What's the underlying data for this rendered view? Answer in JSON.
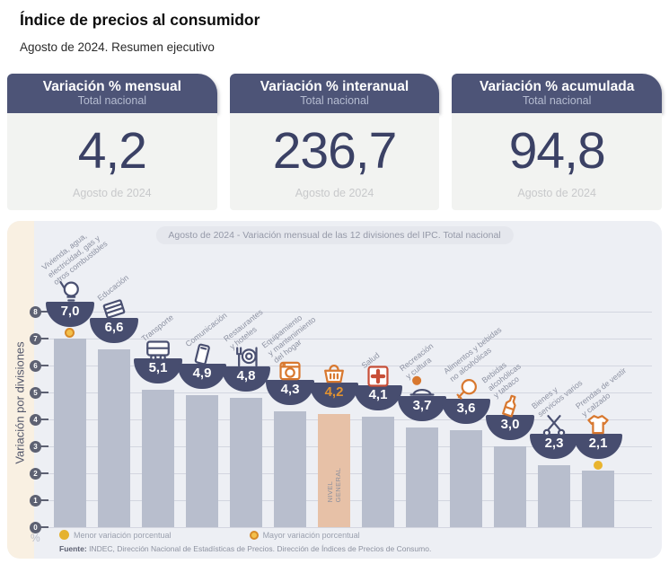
{
  "page": {
    "title": "Índice de precios al consumidor",
    "subtitle": "Agosto de 2024. Resumen ejecutivo"
  },
  "cards": [
    {
      "title": "Variación % mensual",
      "subtitle": "Total nacional",
      "value": "4,2",
      "period": "Agosto de 2024"
    },
    {
      "title": "Variación % interanual",
      "subtitle": "Total nacional",
      "value": "236,7",
      "period": "Agosto de 2024"
    },
    {
      "title": "Variación % acumulada",
      "subtitle": "Total nacional",
      "value": "94,8",
      "period": "Agosto de 2024"
    }
  ],
  "chart_data": {
    "type": "bar",
    "title": "Agosto de 2024 - Variación mensual de las 12 divisiones del IPC. Total nacional",
    "ylabel": "Variación por divisiones",
    "unit_symbol": "%",
    "ylim": [
      0,
      8
    ],
    "yticks": [
      0,
      1,
      2,
      3,
      4,
      5,
      6,
      7,
      8
    ],
    "categories": [
      "Vivienda, agua, electricidad, gas y otros combustibles",
      "Educación",
      "Transporte",
      "Comunicación",
      "Restaurantes y hoteles",
      "Equipamiento y mantenimiento del hogar",
      "Nivel general",
      "Salud",
      "Recreación y cultura",
      "Alimentos y bebidas no alcohólicas",
      "Bebidas alcohólicas y tabaco",
      "Bienes y servicios varios",
      "Prendas de vestir y calzado"
    ],
    "values": [
      7.0,
      6.6,
      5.1,
      4.9,
      4.8,
      4.3,
      4.2,
      4.1,
      3.7,
      3.6,
      3.0,
      2.3,
      2.1
    ],
    "bars": [
      {
        "label_lines": [
          "Vivienda, agua,",
          "electricidad, gas y",
          "otros combustibles"
        ],
        "value": 7.0,
        "value_label": "7,0",
        "icon": "lightbulb-icon",
        "icon_color": "navy",
        "marker": "mayor",
        "highlight": false
      },
      {
        "label_lines": [
          "Educación"
        ],
        "value": 6.6,
        "value_label": "6,6",
        "icon": "books-icon",
        "icon_color": "navy",
        "marker": null,
        "highlight": false
      },
      {
        "label_lines": [
          "Transporte"
        ],
        "value": 5.1,
        "value_label": "5,1",
        "icon": "bus-icon",
        "icon_color": "navy",
        "marker": null,
        "highlight": false
      },
      {
        "label_lines": [
          "Comunicación"
        ],
        "value": 4.9,
        "value_label": "4,9",
        "icon": "smartphone-icon",
        "icon_color": "navy",
        "marker": null,
        "highlight": false
      },
      {
        "label_lines": [
          "Restaurantes",
          "y hoteles"
        ],
        "value": 4.8,
        "value_label": "4,8",
        "icon": "cutlery-icon",
        "icon_color": "navy",
        "marker": null,
        "highlight": false
      },
      {
        "label_lines": [
          "Equipamiento",
          "y mantenimiento",
          "del hogar"
        ],
        "value": 4.3,
        "value_label": "4,3",
        "icon": "appliance-icon",
        "icon_color": "orange",
        "marker": null,
        "highlight": false
      },
      {
        "label_lines": [],
        "in_bar_label": "NIVEL\nGENERAL",
        "value": 4.2,
        "value_label": "4,2",
        "icon": "shopping-basket-icon",
        "icon_color": "orange",
        "marker": null,
        "highlight": true
      },
      {
        "label_lines": [
          "Salud"
        ],
        "value": 4.1,
        "value_label": "4,1",
        "icon": "medical-cross-icon",
        "icon_color": "red",
        "marker": null,
        "highlight": false
      },
      {
        "label_lines": [
          "Recreación",
          "y cultura"
        ],
        "value": 3.7,
        "value_label": "3,7",
        "icon": "sun-hat-icon",
        "icon_color": "navy",
        "marker": null,
        "highlight": false
      },
      {
        "label_lines": [
          "Alimentos y bebidas",
          "no alcohólicas"
        ],
        "value": 3.6,
        "value_label": "3,6",
        "icon": "poultry-icon",
        "icon_color": "orange",
        "marker": null,
        "highlight": false
      },
      {
        "label_lines": [
          "Bebidas",
          "alcohólicas",
          "y tabaco"
        ],
        "value": 3.0,
        "value_label": "3,0",
        "icon": "bottles-icon",
        "icon_color": "orange",
        "marker": null,
        "highlight": false
      },
      {
        "label_lines": [
          "Bienes y",
          "servicios varios"
        ],
        "value": 2.3,
        "value_label": "2,3",
        "icon": "scissors-icon",
        "icon_color": "navy",
        "marker": null,
        "highlight": false
      },
      {
        "label_lines": [
          "Prendas de vestir",
          "y calzado"
        ],
        "value": 2.1,
        "value_label": "2,1",
        "icon": "tshirt-icon",
        "icon_color": "orange",
        "marker": "menor",
        "highlight": false
      }
    ],
    "legend": [
      {
        "label": "Menor variación porcentual",
        "style": "solid",
        "color": "#e5b230"
      },
      {
        "label": "Mayor variación porcentual",
        "style": "ring",
        "color": "#e39a37"
      }
    ],
    "source": {
      "prefix": "Fuente:",
      "text": " INDEC, Dirección Nacional de Estadísticas de Precios. Dirección de Índices de Precios de Consumo."
    }
  },
  "colors": {
    "header_navy": "#4d5477",
    "value_navy": "#3b4165",
    "panel_bg": "#edeff4",
    "strip_cream": "#f9f0e2",
    "bar_gray": "#b8becd",
    "bar_highlight": "#e7c1a7",
    "badge_navy": "#474d6f",
    "icon_navy": "#4a5071",
    "icon_orange": "#d8782f",
    "icon_red": "#c84f38",
    "accent_value": "#e2922f"
  }
}
